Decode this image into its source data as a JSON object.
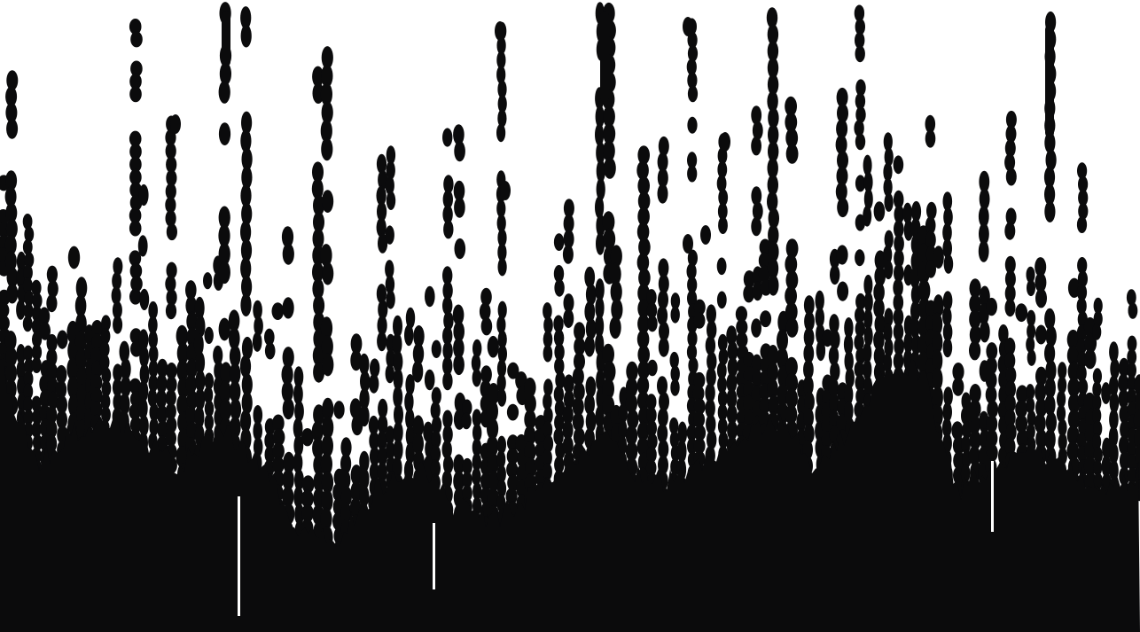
{
  "artwork": {
    "background_color": "#ffffff",
    "mark_color": "#0b0b0c",
    "mark_shape": "oval-dot",
    "pattern": "vertical-dot-columns-dense-at-bottom"
  }
}
